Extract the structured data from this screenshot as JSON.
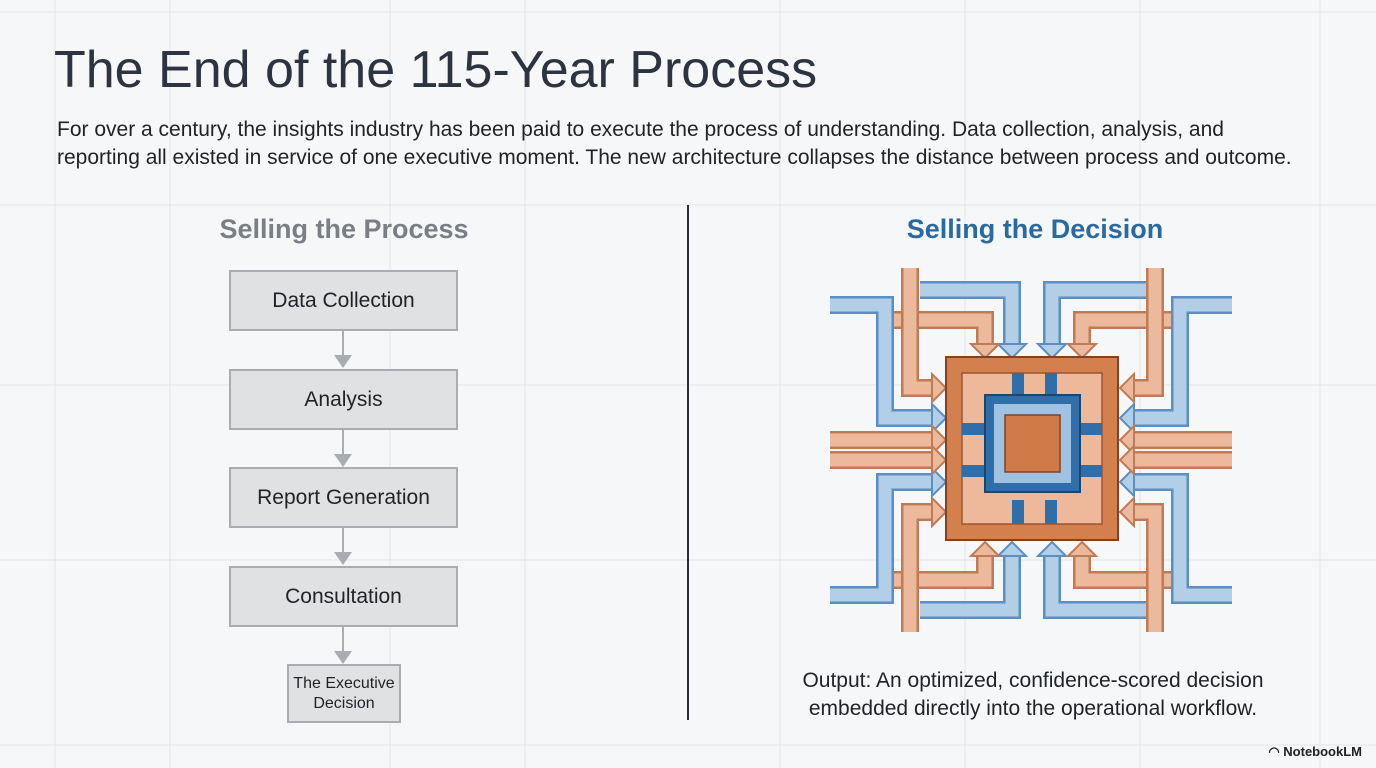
{
  "title": "The End of the 115-Year Process",
  "intro": "For over a century, the insights industry has been paid to execute the process of understanding. Data collection, analysis, and reporting all existed in service of one executive moment. The new architecture collapses the distance between process and outcome.",
  "process": {
    "heading": "Selling the Process",
    "steps": [
      "Data Collection",
      "Analysis",
      "Report Generation",
      "Consultation"
    ],
    "final": "The Executive Decision"
  },
  "decision": {
    "heading": "Selling the Decision",
    "caption": "Output: An optimized, confidence-scored decision embedded directly into the operational workflow."
  },
  "brand": "NotebookLM"
}
